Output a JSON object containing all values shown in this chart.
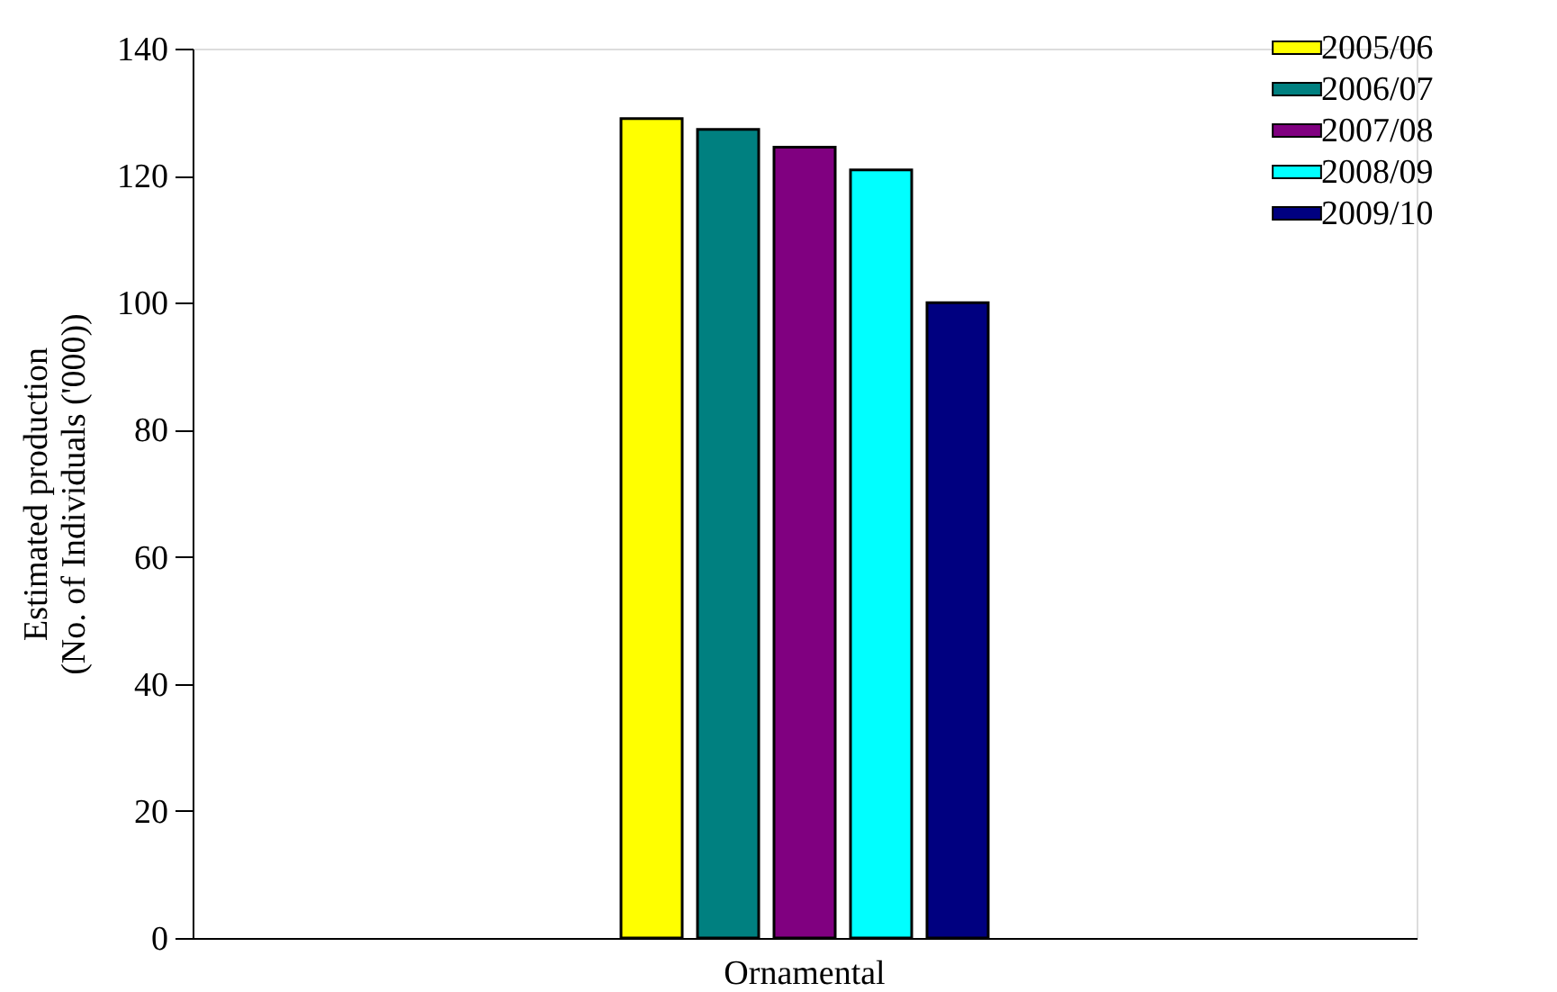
{
  "chart_data": {
    "type": "bar",
    "ylabel": "Estimated production\n(No. of Individuals ('000))",
    "categories": [
      "Ornamental"
    ],
    "series": [
      {
        "name": "2005/06",
        "color": "#ffff00",
        "values": [
          129
        ]
      },
      {
        "name": "2006/07",
        "color": "#008080",
        "values": [
          127.3
        ]
      },
      {
        "name": "2007/08",
        "color": "#800080",
        "values": [
          124.5
        ]
      },
      {
        "name": "2008/09",
        "color": "#00ffff",
        "values": [
          120.9
        ]
      },
      {
        "name": "2009/10",
        "color": "#000080",
        "values": [
          100
        ]
      }
    ],
    "ylim": [
      0,
      140
    ],
    "yticks": [
      0,
      20,
      40,
      60,
      80,
      100,
      120,
      140
    ],
    "grid": false,
    "legend": "top right"
  }
}
